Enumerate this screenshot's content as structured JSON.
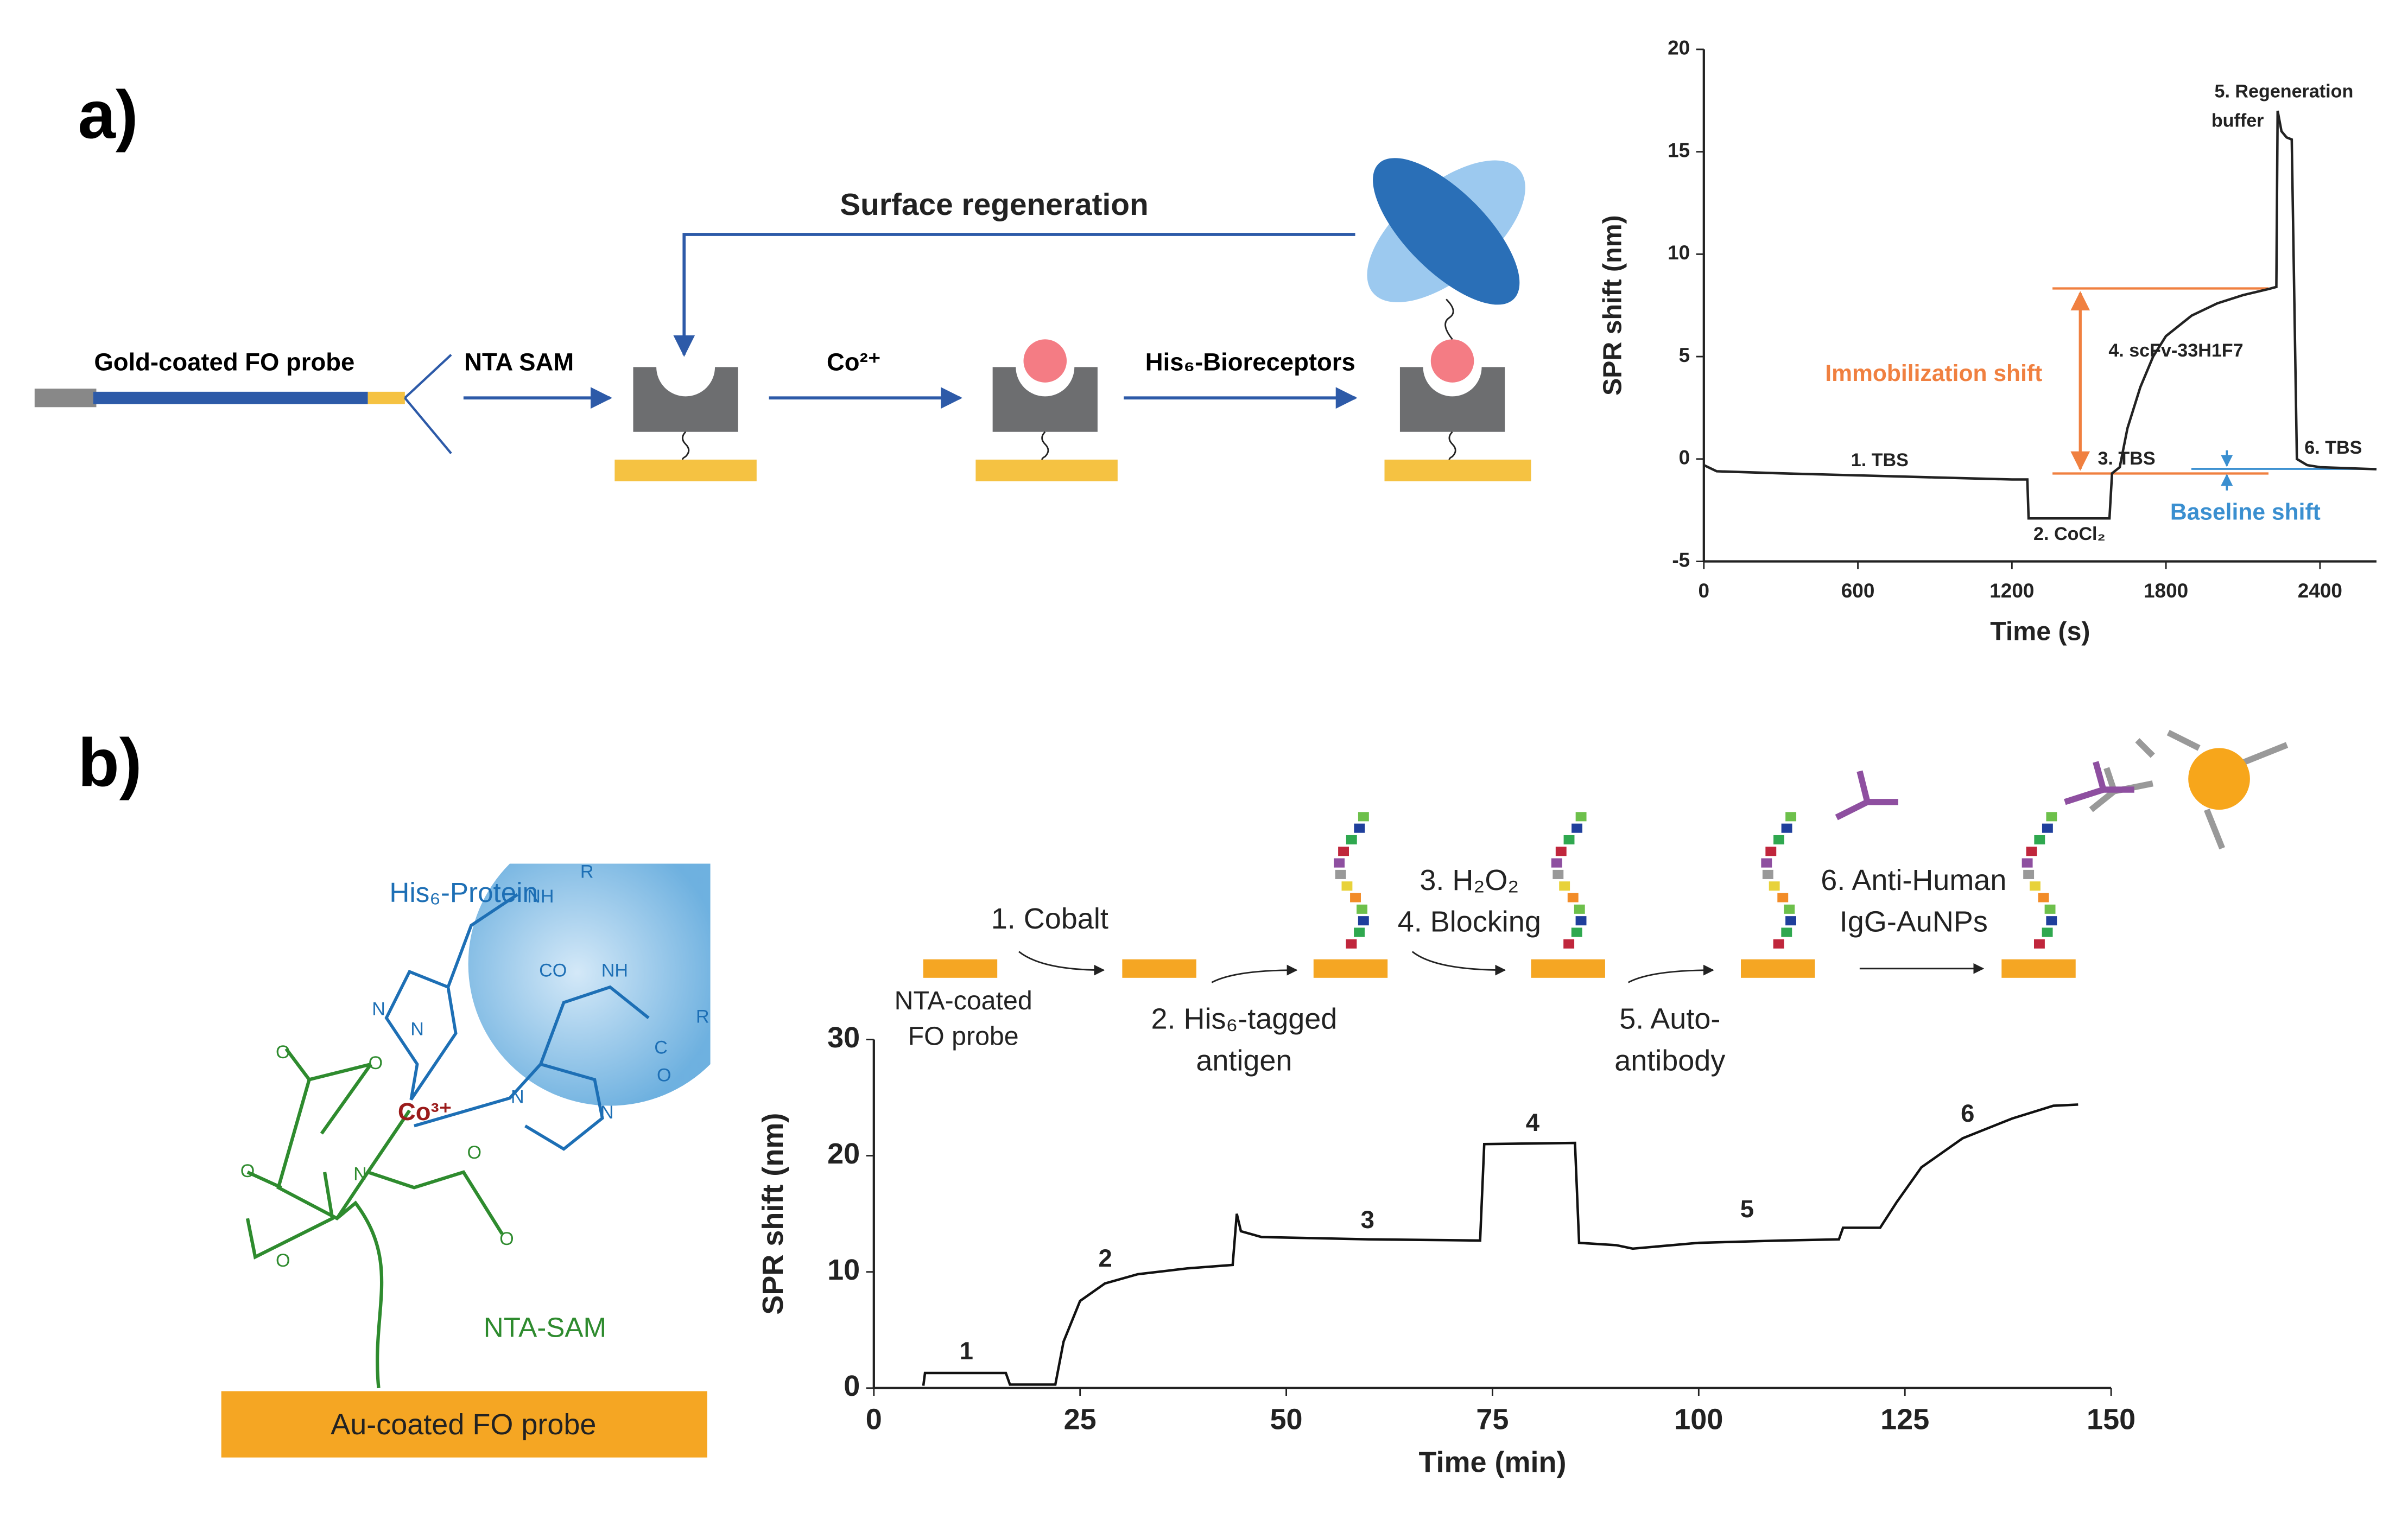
{
  "panel_labels": [
    "a)",
    "b)"
  ],
  "diagram_a": {
    "probe": "Gold-coated FO probe",
    "step1": "NTA SAM",
    "step2": "Co²⁺",
    "step3": "His₆-Bioreceptors",
    "loop": "Surface regeneration"
  },
  "diagram_b": {
    "protein": "His₆-Protein",
    "sam": "NTA-SAM",
    "probe": "Au-coated FO probe",
    "metal": "Co³⁺",
    "atoms": [
      "O",
      "O",
      "O",
      "O",
      "O",
      "O",
      "N",
      "N",
      "N",
      "N",
      "N",
      "NH",
      "R",
      "CO",
      "NH",
      "C",
      "O",
      "R"
    ],
    "steps": {
      "probe": [
        "NTA-coated",
        "FO probe"
      ],
      "s1": "1. Cobalt",
      "s2": [
        "2. His₆-tagged",
        "antigen"
      ],
      "s3": [
        "3. H₂O₂",
        "4. Blocking"
      ],
      "s5": [
        "5. Auto-",
        "antibody"
      ],
      "s6": [
        "6. Anti-Human",
        "IgG-AuNPs"
      ]
    }
  },
  "chart_data": [
    {
      "type": "line",
      "xlabel": "Time (s)",
      "ylabel": "SPR shift (nm)",
      "color": "#222222",
      "x": [
        0,
        50,
        300,
        600,
        900,
        1200,
        1260,
        1265,
        1580,
        1590,
        1620,
        1650,
        1700,
        1750,
        1800,
        1900,
        2000,
        2100,
        2200,
        2230,
        2235,
        2250,
        2270,
        2290,
        2310,
        2350,
        2400,
        2620
      ],
      "values": [
        -0.3,
        -0.6,
        -0.7,
        -0.8,
        -0.9,
        -1.0,
        -1.0,
        -2.9,
        -2.9,
        -0.7,
        -0.4,
        1.5,
        3.5,
        5.0,
        6.0,
        7.0,
        7.6,
        8.0,
        8.3,
        8.4,
        17.0,
        16.0,
        15.7,
        15.6,
        0.0,
        -0.3,
        -0.4,
        -0.5
      ],
      "xlim": [
        0,
        2620
      ],
      "ylim": [
        -5,
        20
      ],
      "xticks": [
        0,
        600,
        1200,
        1800,
        2400
      ],
      "yticks": [
        -5,
        0,
        5,
        10,
        15,
        20
      ],
      "annotations": [
        "1. TBS",
        "2. CoCl₂",
        "3. TBS",
        "4. scFv-33H1F7",
        "5. Regeneration",
        "buffer",
        "6. TBS",
        "Immobilization shift",
        "Baseline shift"
      ]
    },
    {
      "type": "line",
      "xlabel": "Time (min)",
      "ylabel": "SPR shift (nm)",
      "color": "#111111",
      "x": [
        6,
        6.2,
        16,
        16.5,
        22,
        23,
        25,
        28,
        32,
        38,
        43.5,
        44,
        44.5,
        47,
        60,
        73.5,
        74,
        85,
        85.5,
        90,
        92,
        100,
        110,
        117,
        117.5,
        122,
        124,
        127,
        132,
        138,
        143,
        146
      ],
      "values": [
        0.2,
        1.3,
        1.3,
        0.3,
        0.3,
        4,
        7.5,
        9,
        9.8,
        10.3,
        10.6,
        15,
        13.5,
        13.0,
        12.8,
        12.7,
        21,
        21.1,
        12.5,
        12.3,
        12.0,
        12.5,
        12.7,
        12.8,
        13.8,
        13.8,
        16,
        19,
        21.5,
        23.2,
        24.3,
        24.4
      ],
      "xlim": [
        0,
        150
      ],
      "ylim": [
        0,
        30
      ],
      "xticks": [
        0,
        25,
        50,
        75,
        100,
        125,
        150
      ],
      "yticks": [
        0,
        10,
        20,
        30
      ],
      "annotations": [
        "1",
        "2",
        "3",
        "4",
        "5",
        "6"
      ]
    }
  ]
}
